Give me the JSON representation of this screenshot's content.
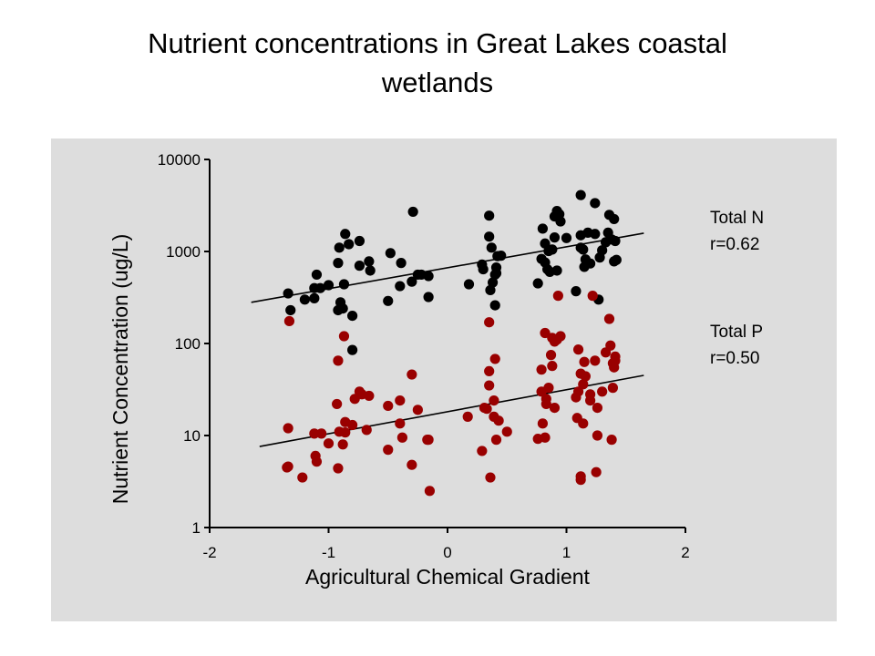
{
  "chart_data": {
    "type": "scatter",
    "title": "Nutrient concentrations in Great Lakes coastal wetlands",
    "xlabel": "Agricultural Chemical Gradient",
    "ylabel": "Nutrient Concentration (ug/L)",
    "xlim": [
      -2,
      2
    ],
    "ylim": [
      1,
      10000
    ],
    "yscale": "log",
    "x_ticks": [
      -2,
      -1,
      0,
      1,
      2
    ],
    "x_tick_labels": [
      "-2",
      "-1",
      "0",
      "1",
      "2"
    ],
    "y_ticks": [
      1,
      10,
      100,
      1000,
      10000
    ],
    "y_tick_labels": [
      "1",
      "10",
      "100",
      "1000",
      "10000"
    ],
    "grid": false,
    "legend": "right, beside each series",
    "series": [
      {
        "name": "Total N",
        "annotation": "r=0.62",
        "color": "#000000",
        "trend": {
          "x": [
            -1.65,
            1.65
          ],
          "y": [
            280,
            1580
          ]
        },
        "points": [
          [
            -1.34,
            350
          ],
          [
            -1.32,
            230
          ],
          [
            -1.2,
            300
          ],
          [
            -1.12,
            310
          ],
          [
            -1.12,
            400
          ],
          [
            -1.1,
            560
          ],
          [
            -1.07,
            400
          ],
          [
            -1.0,
            430
          ],
          [
            -0.92,
            750
          ],
          [
            -0.91,
            1100
          ],
          [
            -0.92,
            230
          ],
          [
            -0.9,
            280
          ],
          [
            -0.88,
            240
          ],
          [
            -0.86,
            1550
          ],
          [
            -0.83,
            1200
          ],
          [
            -0.87,
            440
          ],
          [
            -0.8,
            200
          ],
          [
            -0.8,
            85
          ],
          [
            -0.74,
            1300
          ],
          [
            -0.74,
            700
          ],
          [
            -0.65,
            620
          ],
          [
            -0.66,
            780
          ],
          [
            -0.48,
            960
          ],
          [
            -0.5,
            290
          ],
          [
            -0.4,
            420
          ],
          [
            -0.39,
            750
          ],
          [
            -0.29,
            2700
          ],
          [
            -0.3,
            470
          ],
          [
            -0.25,
            560
          ],
          [
            -0.22,
            560
          ],
          [
            -0.16,
            540
          ],
          [
            -0.16,
            320
          ],
          [
            0.18,
            440
          ],
          [
            0.29,
            720
          ],
          [
            0.3,
            640
          ],
          [
            0.35,
            2450
          ],
          [
            0.35,
            1450
          ],
          [
            0.37,
            1100
          ],
          [
            0.36,
            380
          ],
          [
            0.38,
            460
          ],
          [
            0.4,
            560
          ],
          [
            0.41,
            670
          ],
          [
            0.4,
            260
          ],
          [
            0.42,
            890
          ],
          [
            0.41,
            580
          ],
          [
            0.45,
            900
          ],
          [
            0.76,
            450
          ],
          [
            0.79,
            830
          ],
          [
            0.8,
            1770
          ],
          [
            0.82,
            760
          ],
          [
            0.84,
            640
          ],
          [
            0.82,
            1220
          ],
          [
            0.85,
            1010
          ],
          [
            0.86,
            600
          ],
          [
            0.88,
            1050
          ],
          [
            0.9,
            2400
          ],
          [
            0.9,
            1420
          ],
          [
            0.92,
            2750
          ],
          [
            0.94,
            2540
          ],
          [
            0.92,
            620
          ],
          [
            0.95,
            2120
          ],
          [
            1.0,
            1400
          ],
          [
            1.08,
            370
          ],
          [
            1.12,
            4100
          ],
          [
            1.12,
            1500
          ],
          [
            1.12,
            1100
          ],
          [
            1.14,
            1050
          ],
          [
            1.16,
            820
          ],
          [
            1.15,
            680
          ],
          [
            1.18,
            1600
          ],
          [
            1.2,
            740
          ],
          [
            1.24,
            3350
          ],
          [
            1.24,
            1550
          ],
          [
            1.27,
            300
          ],
          [
            1.28,
            860
          ],
          [
            1.3,
            1030
          ],
          [
            1.33,
            1260
          ],
          [
            1.36,
            2500
          ],
          [
            1.35,
            1600
          ],
          [
            1.38,
            1350
          ],
          [
            1.4,
            2250
          ],
          [
            1.41,
            1300
          ],
          [
            1.42,
            810
          ],
          [
            1.4,
            780
          ]
        ]
      },
      {
        "name": "Total P",
        "annotation": "r=0.50",
        "color": "#990000",
        "trend": {
          "x": [
            -1.58,
            1.65
          ],
          "y": [
            7.6,
            45
          ]
        },
        "points": [
          [
            -1.33,
            175
          ],
          [
            -1.34,
            12
          ],
          [
            -1.35,
            4.5
          ],
          [
            -1.34,
            4.6
          ],
          [
            -1.22,
            3.5
          ],
          [
            -1.12,
            10.5
          ],
          [
            -1.11,
            6
          ],
          [
            -1.1,
            5.2
          ],
          [
            -1.06,
            10.5
          ],
          [
            -1.0,
            8.2
          ],
          [
            -0.93,
            22
          ],
          [
            -0.92,
            65
          ],
          [
            -0.92,
            4.4
          ],
          [
            -0.91,
            11
          ],
          [
            -0.87,
            120
          ],
          [
            -0.86,
            14
          ],
          [
            -0.88,
            8
          ],
          [
            -0.86,
            10.8
          ],
          [
            -0.8,
            13
          ],
          [
            -0.78,
            25
          ],
          [
            -0.74,
            30
          ],
          [
            -0.72,
            28
          ],
          [
            -0.66,
            27
          ],
          [
            -0.68,
            11.5
          ],
          [
            -0.5,
            21
          ],
          [
            -0.5,
            7
          ],
          [
            -0.4,
            24
          ],
          [
            -0.4,
            13.5
          ],
          [
            -0.38,
            9.5
          ],
          [
            -0.3,
            46
          ],
          [
            -0.3,
            4.8
          ],
          [
            -0.25,
            19
          ],
          [
            -0.17,
            9
          ],
          [
            -0.16,
            9
          ],
          [
            -0.15,
            2.5
          ],
          [
            0.17,
            16
          ],
          [
            0.29,
            6.8
          ],
          [
            0.31,
            20
          ],
          [
            0.33,
            19.5
          ],
          [
            0.35,
            170
          ],
          [
            0.35,
            50
          ],
          [
            0.35,
            35
          ],
          [
            0.36,
            3.5
          ],
          [
            0.39,
            16
          ],
          [
            0.39,
            24
          ],
          [
            0.4,
            68
          ],
          [
            0.41,
            9
          ],
          [
            0.43,
            14.5
          ],
          [
            0.5,
            11
          ],
          [
            0.76,
            9.2
          ],
          [
            0.79,
            52
          ],
          [
            0.79,
            30
          ],
          [
            0.8,
            13.5
          ],
          [
            0.82,
            9.5
          ],
          [
            0.82,
            130
          ],
          [
            0.83,
            25
          ],
          [
            0.83,
            22
          ],
          [
            0.85,
            33
          ],
          [
            0.87,
            75
          ],
          [
            0.88,
            115
          ],
          [
            0.88,
            57
          ],
          [
            0.9,
            20
          ],
          [
            0.9,
            105
          ],
          [
            0.92,
            110
          ],
          [
            0.93,
            330
          ],
          [
            0.95,
            120
          ],
          [
            1.08,
            26
          ],
          [
            1.09,
            15.5
          ],
          [
            1.1,
            86
          ],
          [
            1.1,
            30
          ],
          [
            1.12,
            3.6
          ],
          [
            1.12,
            3.3
          ],
          [
            1.12,
            47
          ],
          [
            1.14,
            13.5
          ],
          [
            1.15,
            63
          ],
          [
            1.14,
            36
          ],
          [
            1.16,
            44
          ],
          [
            1.2,
            24
          ],
          [
            1.2,
            28
          ],
          [
            1.22,
            330
          ],
          [
            1.24,
            65
          ],
          [
            1.25,
            4
          ],
          [
            1.26,
            20
          ],
          [
            1.26,
            10
          ],
          [
            1.3,
            30
          ],
          [
            1.33,
            80
          ],
          [
            1.36,
            185
          ],
          [
            1.37,
            95
          ],
          [
            1.38,
            9
          ],
          [
            1.39,
            33
          ],
          [
            1.39,
            61
          ],
          [
            1.41,
            65
          ],
          [
            1.41,
            72
          ],
          [
            1.4,
            55
          ]
        ]
      }
    ]
  }
}
